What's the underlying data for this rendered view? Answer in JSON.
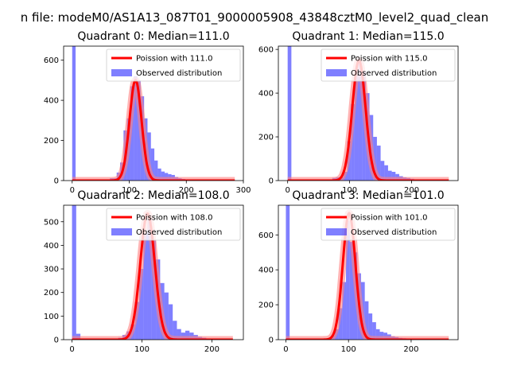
{
  "figure": {
    "suptitle": "n file: modeM0/AS1A13_087T01_9000005908_43848cztM0_level2_quad_clean"
  },
  "colors": {
    "hist": "#0000ff",
    "fit": "#ff0000",
    "fit_glow": "#ff8080",
    "axes": "#000000"
  },
  "chart_data": [
    {
      "type": "bar",
      "title": "Quadrant 0: Median=111.0",
      "xlim": [
        -15,
        300
      ],
      "ylim": [
        0,
        670
      ],
      "xticks": [
        0,
        100,
        200,
        300
      ],
      "yticks": [
        0,
        200,
        400,
        600
      ],
      "legend": {
        "placement": "top-right",
        "entries": [
          "Poission with 111.0",
          "Observed distribution"
        ]
      },
      "histogram": {
        "name": "Observed distribution",
        "bin_width": 6,
        "bins": [
          {
            "x": 0,
            "y": 680
          },
          {
            "x": 6,
            "y": 5
          },
          {
            "x": 66,
            "y": 12
          },
          {
            "x": 72,
            "y": 12
          },
          {
            "x": 78,
            "y": 40
          },
          {
            "x": 84,
            "y": 90
          },
          {
            "x": 90,
            "y": 250
          },
          {
            "x": 96,
            "y": 310
          },
          {
            "x": 102,
            "y": 470
          },
          {
            "x": 108,
            "y": 520
          },
          {
            "x": 114,
            "y": 500
          },
          {
            "x": 120,
            "y": 420
          },
          {
            "x": 126,
            "y": 310
          },
          {
            "x": 132,
            "y": 240
          },
          {
            "x": 138,
            "y": 160
          },
          {
            "x": 144,
            "y": 100
          },
          {
            "x": 150,
            "y": 60
          },
          {
            "x": 156,
            "y": 45
          },
          {
            "x": 162,
            "y": 38
          },
          {
            "x": 168,
            "y": 32
          },
          {
            "x": 174,
            "y": 28
          },
          {
            "x": 180,
            "y": 18
          },
          {
            "x": 186,
            "y": 12
          },
          {
            "x": 192,
            "y": 8
          },
          {
            "x": 198,
            "y": 5
          },
          {
            "x": 204,
            "y": 3
          },
          {
            "x": 210,
            "y": 3
          },
          {
            "x": 216,
            "y": 2
          }
        ]
      },
      "fit": {
        "name": "Poission with 111.0",
        "mean": 111.0,
        "amplitude": 500,
        "sigma": 10.5,
        "x_range": [
          0,
          285
        ]
      }
    },
    {
      "type": "bar",
      "title": "Quadrant 1: Median=115.0",
      "xlim": [
        -15,
        275
      ],
      "ylim": [
        0,
        615
      ],
      "xticks": [
        0,
        100,
        200
      ],
      "yticks": [
        0,
        200,
        400,
        600
      ],
      "legend": {
        "placement": "top-right",
        "entries": [
          "Poission with 115.0",
          "Observed distribution"
        ]
      },
      "histogram": {
        "name": "Observed distribution",
        "bin_width": 6,
        "bins": [
          {
            "x": 0,
            "y": 615
          },
          {
            "x": 72,
            "y": 12
          },
          {
            "x": 78,
            "y": 15
          },
          {
            "x": 84,
            "y": 15
          },
          {
            "x": 90,
            "y": 40
          },
          {
            "x": 96,
            "y": 180
          },
          {
            "x": 102,
            "y": 350
          },
          {
            "x": 108,
            "y": 480
          },
          {
            "x": 114,
            "y": 540
          },
          {
            "x": 120,
            "y": 500
          },
          {
            "x": 126,
            "y": 400
          },
          {
            "x": 132,
            "y": 300
          },
          {
            "x": 138,
            "y": 200
          },
          {
            "x": 144,
            "y": 160
          },
          {
            "x": 150,
            "y": 90
          },
          {
            "x": 156,
            "y": 70
          },
          {
            "x": 162,
            "y": 45
          },
          {
            "x": 168,
            "y": 40
          },
          {
            "x": 174,
            "y": 30
          },
          {
            "x": 180,
            "y": 20
          },
          {
            "x": 186,
            "y": 15
          },
          {
            "x": 192,
            "y": 12
          },
          {
            "x": 198,
            "y": 8
          },
          {
            "x": 204,
            "y": 5
          },
          {
            "x": 210,
            "y": 4
          },
          {
            "x": 216,
            "y": 3
          }
        ]
      },
      "fit": {
        "name": "Poission with 115.0",
        "mean": 115.0,
        "amplitude": 550,
        "sigma": 10.7,
        "x_range": [
          0,
          260
        ]
      }
    },
    {
      "type": "bar",
      "title": "Quadrant 2: Median=108.0",
      "xlim": [
        -12,
        245
      ],
      "ylim": [
        0,
        570
      ],
      "xticks": [
        0,
        100,
        200
      ],
      "yticks": [
        0,
        100,
        200,
        300,
        400,
        500
      ],
      "legend": {
        "placement": "top-right",
        "entries": [
          "Poission with 108.0",
          "Observed distribution"
        ]
      },
      "histogram": {
        "name": "Observed distribution",
        "bin_width": 6,
        "bins": [
          {
            "x": 0,
            "y": 570
          },
          {
            "x": 6,
            "y": 25
          },
          {
            "x": 60,
            "y": 5
          },
          {
            "x": 66,
            "y": 8
          },
          {
            "x": 72,
            "y": 20
          },
          {
            "x": 78,
            "y": 35
          },
          {
            "x": 84,
            "y": 65
          },
          {
            "x": 90,
            "y": 160
          },
          {
            "x": 96,
            "y": 300
          },
          {
            "x": 102,
            "y": 450
          },
          {
            "x": 108,
            "y": 510
          },
          {
            "x": 114,
            "y": 420
          },
          {
            "x": 120,
            "y": 340
          },
          {
            "x": 126,
            "y": 240
          },
          {
            "x": 132,
            "y": 200
          },
          {
            "x": 138,
            "y": 150
          },
          {
            "x": 144,
            "y": 80
          },
          {
            "x": 150,
            "y": 45
          },
          {
            "x": 156,
            "y": 30
          },
          {
            "x": 162,
            "y": 38
          },
          {
            "x": 168,
            "y": 30
          },
          {
            "x": 174,
            "y": 20
          },
          {
            "x": 180,
            "y": 12
          },
          {
            "x": 186,
            "y": 8
          },
          {
            "x": 192,
            "y": 5
          },
          {
            "x": 198,
            "y": 3
          }
        ]
      },
      "fit": {
        "name": "Poission with 108.0",
        "mean": 108.0,
        "amplitude": 535,
        "sigma": 10.4,
        "x_range": [
          0,
          230
        ]
      }
    },
    {
      "type": "bar",
      "title": "Quadrant 3: Median=101.0",
      "xlim": [
        -12,
        275
      ],
      "ylim": [
        0,
        770
      ],
      "xticks": [
        0,
        100,
        200
      ],
      "yticks": [
        0,
        200,
        400,
        600
      ],
      "legend": {
        "placement": "top-right",
        "entries": [
          "Poission with 101.0",
          "Observed distribution"
        ]
      },
      "histogram": {
        "name": "Observed distribution",
        "bin_width": 6,
        "bins": [
          {
            "x": 0,
            "y": 770
          },
          {
            "x": 66,
            "y": 8
          },
          {
            "x": 72,
            "y": 25
          },
          {
            "x": 78,
            "y": 60
          },
          {
            "x": 84,
            "y": 180
          },
          {
            "x": 90,
            "y": 330
          },
          {
            "x": 96,
            "y": 680
          },
          {
            "x": 102,
            "y": 560
          },
          {
            "x": 108,
            "y": 500
          },
          {
            "x": 114,
            "y": 380
          },
          {
            "x": 120,
            "y": 330
          },
          {
            "x": 126,
            "y": 220
          },
          {
            "x": 132,
            "y": 150
          },
          {
            "x": 138,
            "y": 100
          },
          {
            "x": 144,
            "y": 60
          },
          {
            "x": 150,
            "y": 45
          },
          {
            "x": 156,
            "y": 40
          },
          {
            "x": 162,
            "y": 30
          },
          {
            "x": 168,
            "y": 20
          },
          {
            "x": 174,
            "y": 15
          },
          {
            "x": 180,
            "y": 10
          },
          {
            "x": 186,
            "y": 8
          },
          {
            "x": 192,
            "y": 5
          },
          {
            "x": 198,
            "y": 3
          }
        ]
      },
      "fit": {
        "name": "Poission with 101.0",
        "mean": 101.0,
        "amplitude": 725,
        "sigma": 10.0,
        "x_range": [
          0,
          260
        ]
      }
    }
  ]
}
